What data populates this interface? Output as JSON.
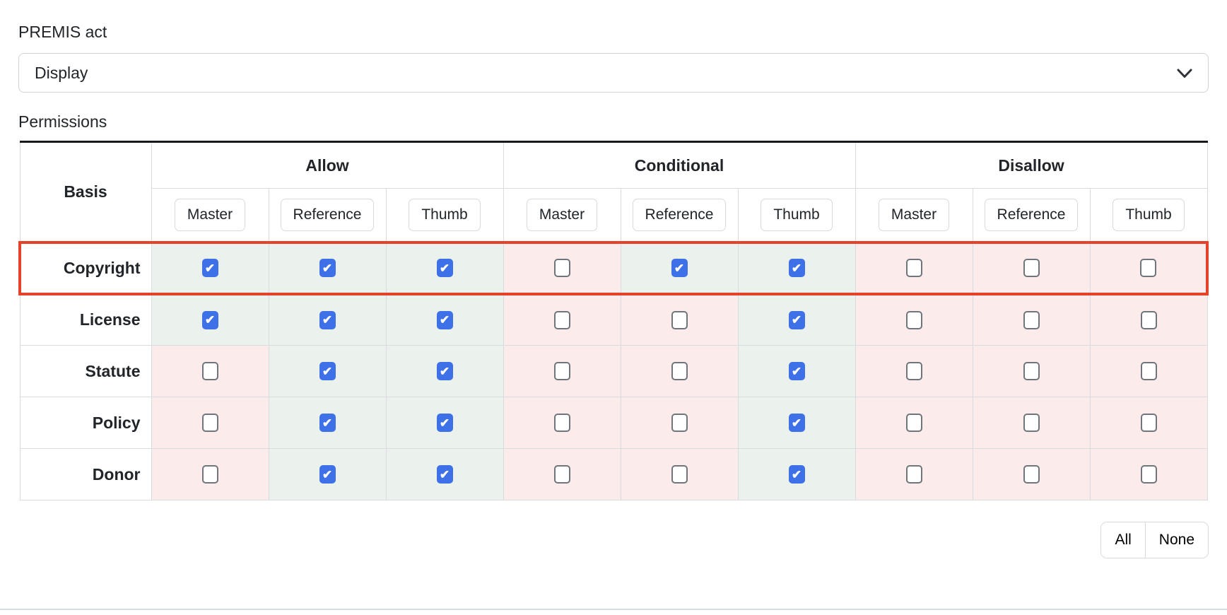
{
  "form": {
    "premis_act_label": "PREMIS act",
    "premis_act_value": "Display",
    "permissions_label": "Permissions"
  },
  "table": {
    "basis_header": "Basis",
    "groups": [
      {
        "label": "Allow",
        "key": "allow",
        "columns": [
          "Master",
          "Reference",
          "Thumb"
        ]
      },
      {
        "label": "Conditional",
        "key": "conditional",
        "columns": [
          "Master",
          "Reference",
          "Thumb"
        ]
      },
      {
        "label": "Disallow",
        "key": "disallow",
        "columns": [
          "Master",
          "Reference",
          "Thumb"
        ]
      }
    ],
    "rows": [
      {
        "label": "Copyright",
        "highlighted": true,
        "checks": [
          true,
          true,
          true,
          false,
          true,
          true,
          false,
          false,
          false
        ]
      },
      {
        "label": "License",
        "highlighted": false,
        "checks": [
          true,
          true,
          true,
          false,
          false,
          true,
          false,
          false,
          false
        ]
      },
      {
        "label": "Statute",
        "highlighted": false,
        "checks": [
          false,
          true,
          true,
          false,
          false,
          true,
          false,
          false,
          false
        ]
      },
      {
        "label": "Policy",
        "highlighted": false,
        "checks": [
          false,
          true,
          true,
          false,
          false,
          true,
          false,
          false,
          false
        ]
      },
      {
        "label": "Donor",
        "highlighted": false,
        "checks": [
          false,
          true,
          true,
          false,
          false,
          true,
          false,
          false,
          false
        ]
      }
    ]
  },
  "actions": {
    "all_label": "All",
    "none_label": "None"
  },
  "icons": {
    "checkmark": "✔",
    "chevron_down": "chevron-down"
  },
  "colors": {
    "checkbox_checked_blue": "#3e70e8",
    "highlight_red": "#e4432a",
    "allowed_cell_green": "#ebf1ec",
    "denied_cell_pink": "#fbeceb"
  }
}
